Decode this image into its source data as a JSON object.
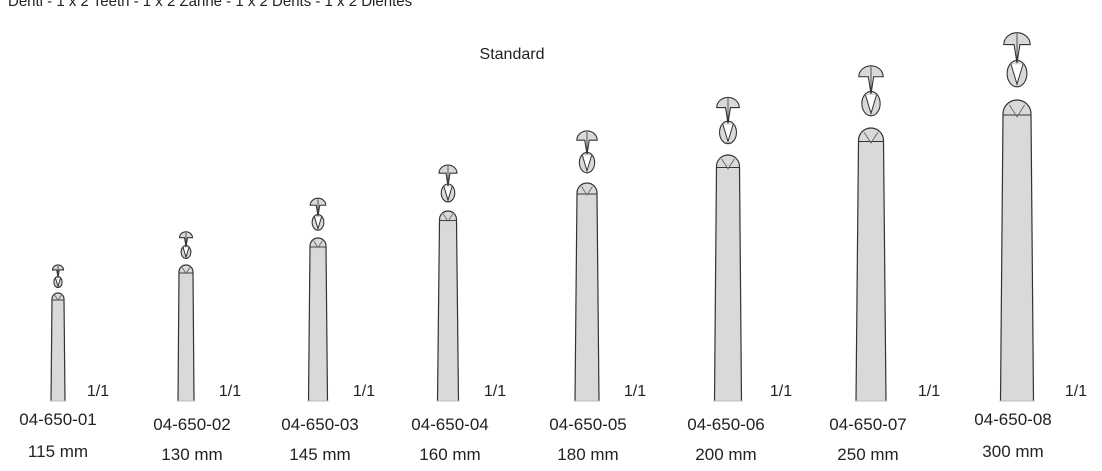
{
  "header": {
    "teeth_text": "Denti - 1 x 2 Teeth - 1 x 2 Zähne - 1 x 2 Dents - 1 x 2 Dientes",
    "variant_label": "Standard"
  },
  "colors": {
    "shaft_fill": "#d9d9d9",
    "outline": "#333333",
    "text": "#222222"
  },
  "instruments": [
    {
      "code": "04-650-01",
      "length": "115 mm",
      "scale": "1/1"
    },
    {
      "code": "04-650-02",
      "length": "130 mm",
      "scale": "1/1"
    },
    {
      "code": "04-650-03",
      "length": "145 mm",
      "scale": "1/1"
    },
    {
      "code": "04-650-04",
      "length": "160 mm",
      "scale": "1/1"
    },
    {
      "code": "04-650-05",
      "length": "180 mm",
      "scale": "1/1"
    },
    {
      "code": "04-650-06",
      "length": "200 mm",
      "scale": "1/1"
    },
    {
      "code": "04-650-07",
      "length": "250 mm",
      "scale": "1/1"
    },
    {
      "code": "04-650-08",
      "length": "300 mm",
      "scale": "1/1"
    }
  ]
}
